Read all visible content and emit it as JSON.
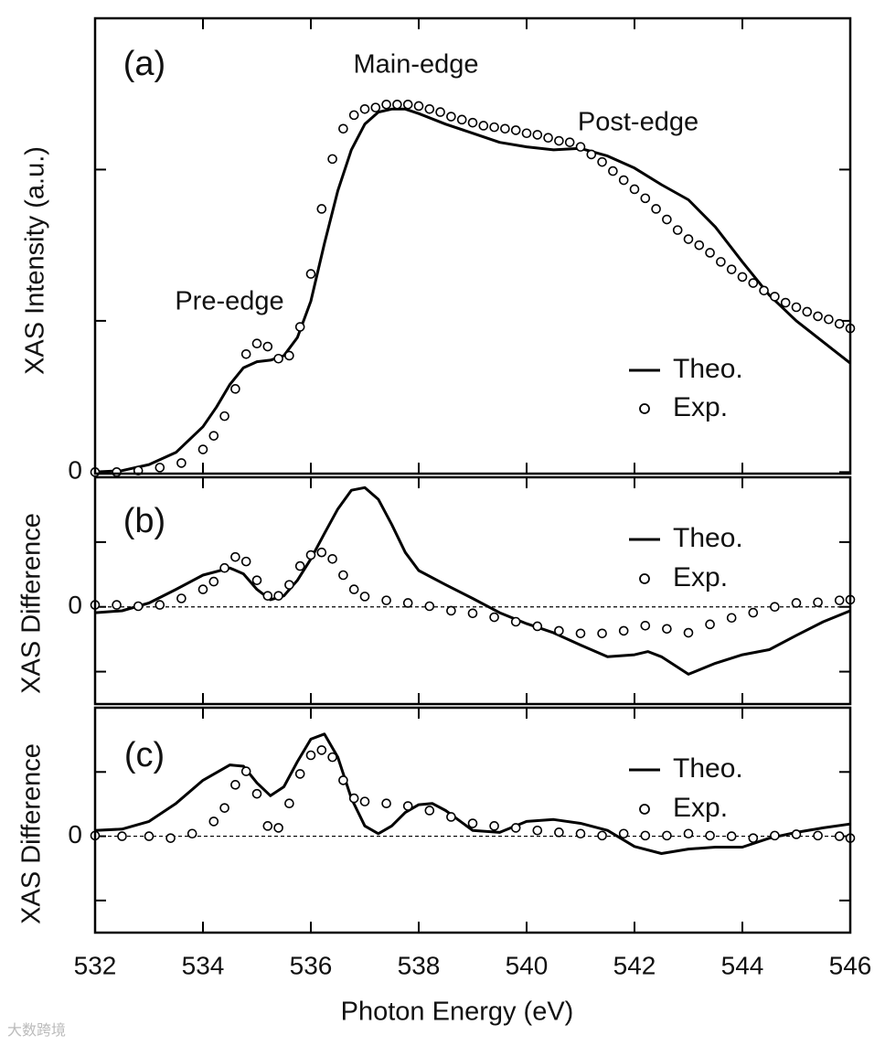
{
  "chart_data": [
    {
      "type": "line",
      "ylabel": "XAS Intensity (a.u.)",
      "annotations": [
        "(a)",
        "Main-edge",
        "Pre-edge",
        "Post-edge"
      ],
      "xlim": [
        532,
        546
      ],
      "ylim": [
        -0.01,
        3.0
      ],
      "yticks": [
        0,
        {
          "value": 1,
          "label": null
        },
        {
          "value": 2,
          "label": null
        }
      ],
      "legend": "lower right",
      "series": [
        {
          "name": "Theo.",
          "color": "#000000",
          "style": "line",
          "x": [
            532,
            532.5,
            533,
            533.5,
            534,
            534.25,
            534.5,
            534.75,
            535,
            535.25,
            535.5,
            535.75,
            536,
            536.25,
            536.5,
            536.75,
            537,
            537.25,
            537.5,
            537.75,
            538,
            538.5,
            539,
            539.5,
            540,
            540.5,
            541,
            541.5,
            542,
            542.5,
            543,
            543.5,
            544,
            544.5,
            545,
            545.5,
            546
          ],
          "values": [
            0,
            0.01,
            0.05,
            0.13,
            0.3,
            0.43,
            0.58,
            0.69,
            0.73,
            0.74,
            0.77,
            0.89,
            1.13,
            1.51,
            1.86,
            2.13,
            2.3,
            2.38,
            2.4,
            2.4,
            2.37,
            2.3,
            2.24,
            2.18,
            2.15,
            2.13,
            2.14,
            2.09,
            2.01,
            1.9,
            1.8,
            1.62,
            1.39,
            1.17,
            1.0,
            0.86,
            0.72
          ]
        },
        {
          "name": "Exp.",
          "color": "#000000",
          "style": "marker",
          "x": [
            532,
            532.4,
            532.8,
            533.2,
            533.6,
            534,
            534.2,
            534.4,
            534.6,
            534.8,
            535,
            535.2,
            535.4,
            535.6,
            535.8,
            536,
            536.2,
            536.4,
            536.6,
            536.8,
            537,
            537.2,
            537.4,
            537.6,
            537.8,
            538,
            538.2,
            538.4,
            538.6,
            538.8,
            539,
            539.2,
            539.4,
            539.6,
            539.8,
            540,
            540.2,
            540.4,
            540.6,
            540.8,
            541,
            541.2,
            541.4,
            541.6,
            541.8,
            542,
            542.2,
            542.4,
            542.6,
            542.8,
            543,
            543.2,
            543.4,
            543.6,
            543.8,
            544,
            544.2,
            544.4,
            544.6,
            544.8,
            545,
            545.2,
            545.4,
            545.6,
            545.8,
            546
          ],
          "values": [
            0,
            0,
            0.01,
            0.03,
            0.06,
            0.15,
            0.24,
            0.37,
            0.55,
            0.78,
            0.85,
            0.83,
            0.75,
            0.77,
            0.96,
            1.31,
            1.74,
            2.07,
            2.27,
            2.36,
            2.4,
            2.41,
            2.43,
            2.43,
            2.43,
            2.42,
            2.4,
            2.38,
            2.35,
            2.33,
            2.31,
            2.29,
            2.28,
            2.27,
            2.26,
            2.24,
            2.23,
            2.21,
            2.19,
            2.18,
            2.15,
            2.1,
            2.05,
            1.99,
            1.93,
            1.87,
            1.81,
            1.74,
            1.67,
            1.6,
            1.54,
            1.5,
            1.45,
            1.39,
            1.34,
            1.29,
            1.25,
            1.2,
            1.16,
            1.12,
            1.09,
            1.06,
            1.03,
            1.01,
            0.98,
            0.95
          ]
        }
      ]
    },
    {
      "type": "line",
      "ylabel": "XAS Difference",
      "annotations": [
        "(b)"
      ],
      "xlim": [
        532,
        546
      ],
      "ylim": [
        -1.5,
        2.0
      ],
      "yticks": [
        {
          "value": -1,
          "label": null
        },
        0,
        {
          "value": 1,
          "label": null
        }
      ],
      "reference_line": 0,
      "legend": "upper right",
      "series": [
        {
          "name": "Theo.",
          "color": "#000000",
          "style": "line",
          "x": [
            532,
            532.5,
            533,
            533.5,
            534,
            534.5,
            534.75,
            535,
            535.25,
            535.5,
            535.75,
            536,
            536.25,
            536.5,
            536.75,
            537,
            537.25,
            537.5,
            537.75,
            538,
            538.5,
            539,
            539.5,
            540,
            540.5,
            541,
            541.5,
            542,
            542.25,
            542.5,
            543,
            543.5,
            544,
            544.5,
            545,
            545.5,
            546
          ],
          "values": [
            -0.09,
            -0.06,
            0.06,
            0.27,
            0.49,
            0.6,
            0.51,
            0.27,
            0.11,
            0.17,
            0.41,
            0.74,
            1.13,
            1.51,
            1.8,
            1.84,
            1.66,
            1.27,
            0.84,
            0.56,
            0.34,
            0.13,
            -0.09,
            -0.26,
            -0.4,
            -0.59,
            -0.77,
            -0.74,
            -0.69,
            -0.77,
            -1.04,
            -0.87,
            -0.74,
            -0.66,
            -0.44,
            -0.23,
            -0.06
          ]
        },
        {
          "name": "Exp.",
          "color": "#000000",
          "style": "marker",
          "x": [
            532,
            532.4,
            532.8,
            533.2,
            533.6,
            534,
            534.2,
            534.4,
            534.6,
            534.8,
            535,
            535.2,
            535.4,
            535.6,
            535.8,
            536,
            536.2,
            536.4,
            536.6,
            536.8,
            537,
            537.4,
            537.8,
            538.2,
            538.6,
            539,
            539.4,
            539.8,
            540.2,
            540.6,
            541,
            541.4,
            541.8,
            542.2,
            542.6,
            543,
            543.4,
            543.8,
            544.2,
            544.6,
            545,
            545.4,
            545.8,
            546
          ],
          "values": [
            0.03,
            0.03,
            0.01,
            0.03,
            0.13,
            0.27,
            0.39,
            0.6,
            0.77,
            0.7,
            0.41,
            0.17,
            0.17,
            0.34,
            0.63,
            0.8,
            0.84,
            0.74,
            0.49,
            0.27,
            0.16,
            0.1,
            0.06,
            0.01,
            -0.06,
            -0.1,
            -0.16,
            -0.23,
            -0.3,
            -0.37,
            -0.41,
            -0.41,
            -0.37,
            -0.29,
            -0.34,
            -0.4,
            -0.27,
            -0.17,
            -0.09,
            0.0,
            0.06,
            0.07,
            0.1,
            0.11
          ]
        }
      ]
    },
    {
      "type": "line",
      "ylabel": "XAS Difference",
      "xlabel": "Photon Energy (eV)",
      "annotations": [
        "(c)"
      ],
      "xlim": [
        532,
        546
      ],
      "ylim": [
        -1.5,
        2.0
      ],
      "xticks": [
        532,
        534,
        536,
        538,
        540,
        542,
        544,
        546
      ],
      "yticks": [
        {
          "value": -1,
          "label": null
        },
        0,
        {
          "value": 1,
          "label": null
        }
      ],
      "reference_line": 0,
      "legend": "upper right",
      "series": [
        {
          "name": "Theo.",
          "color": "#000000",
          "style": "line",
          "x": [
            532,
            532.5,
            533,
            533.5,
            534,
            534.5,
            534.75,
            535,
            535.25,
            535.5,
            535.75,
            536,
            536.25,
            536.5,
            536.75,
            537,
            537.25,
            537.5,
            537.75,
            538,
            538.25,
            538.5,
            539,
            539.5,
            540,
            540.5,
            541,
            541.5,
            542,
            542.5,
            543,
            543.5,
            544,
            544.5,
            545,
            545.5,
            546
          ],
          "values": [
            0.09,
            0.11,
            0.23,
            0.51,
            0.87,
            1.11,
            1.09,
            0.83,
            0.63,
            0.77,
            1.16,
            1.51,
            1.59,
            1.23,
            0.59,
            0.16,
            0.04,
            0.16,
            0.37,
            0.49,
            0.51,
            0.4,
            0.09,
            0.06,
            0.23,
            0.26,
            0.2,
            0.09,
            -0.16,
            -0.27,
            -0.2,
            -0.17,
            -0.17,
            -0.03,
            0.06,
            0.13,
            0.19
          ]
        },
        {
          "name": "Exp.",
          "color": "#000000",
          "style": "marker",
          "x": [
            532,
            532.5,
            533,
            533.4,
            533.8,
            534.2,
            534.4,
            534.6,
            534.8,
            535,
            535.2,
            535.4,
            535.6,
            535.8,
            536,
            536.2,
            536.4,
            536.6,
            536.8,
            537,
            537.4,
            537.8,
            538.2,
            538.6,
            539,
            539.4,
            539.8,
            540.2,
            540.6,
            541,
            541.4,
            541.8,
            542.2,
            542.6,
            543,
            543.4,
            543.8,
            544.2,
            544.6,
            545,
            545.4,
            545.8,
            546
          ],
          "values": [
            0.01,
            0,
            0,
            -0.03,
            0.04,
            0.23,
            0.44,
            0.8,
            1.01,
            0.66,
            0.16,
            0.13,
            0.51,
            0.97,
            1.26,
            1.34,
            1.23,
            0.87,
            0.59,
            0.54,
            0.51,
            0.47,
            0.4,
            0.3,
            0.2,
            0.16,
            0.13,
            0.09,
            0.06,
            0.04,
            0.01,
            0.04,
            0.01,
            0.01,
            0.04,
            0.01,
            0,
            -0.03,
            0.01,
            0.03,
            0.01,
            0,
            -0.03
          ]
        }
      ]
    }
  ],
  "watermark": "大数跨境"
}
